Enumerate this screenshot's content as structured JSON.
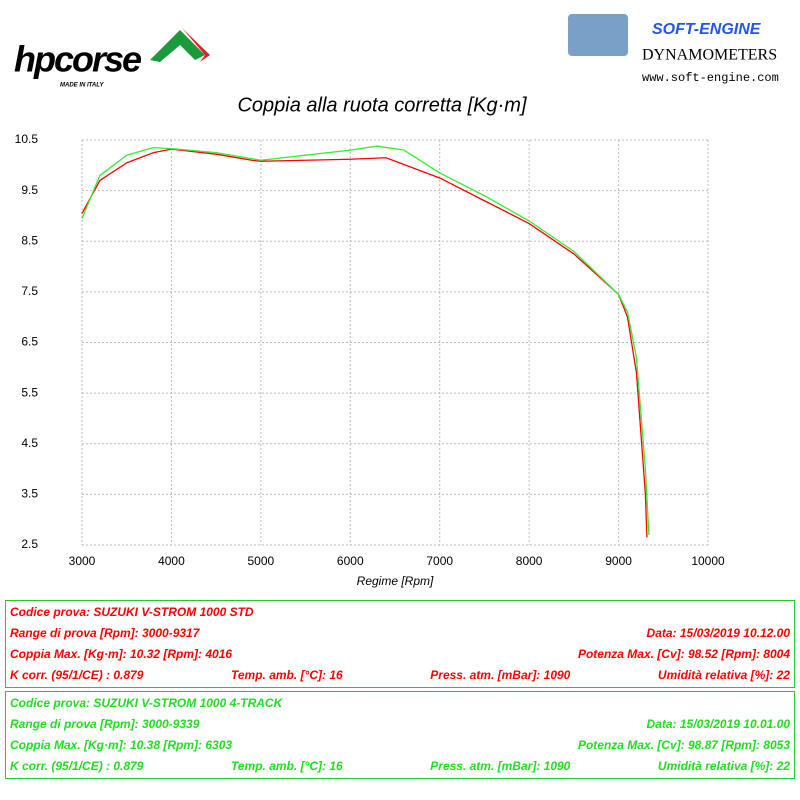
{
  "header": {
    "brand": "hpcorse",
    "brand_tagline": "MADE IN ITALY",
    "dyno_brand": "SOFT-ENGINE",
    "dyno_type": "DYNAMOMETERS",
    "dyno_site": "www.soft-engine.com"
  },
  "chart_data": {
    "type": "line",
    "title": "Coppia alla ruota corretta [Kg·m]",
    "x_label": "Regime [Rpm]",
    "xlim": [
      3000,
      10000
    ],
    "xticks": [
      3000,
      4000,
      5000,
      6000,
      7000,
      8000,
      9000,
      10000
    ],
    "ylim": [
      2.5,
      10.5
    ],
    "yticks": [
      2.5,
      3.5,
      4.5,
      5.5,
      6.5,
      7.5,
      8.5,
      9.5,
      10.5
    ],
    "grid": true,
    "series": [
      {
        "color": "#ff0000",
        "x": [
          3000,
          3200,
          3500,
          3800,
          4000,
          4500,
          4900,
          5000,
          5500,
          6000,
          6400,
          7000,
          7500,
          8000,
          8500,
          9000,
          9100,
          9200,
          9300,
          9317
        ],
        "values": [
          9.05,
          9.7,
          10.05,
          10.25,
          10.32,
          10.22,
          10.1,
          10.08,
          10.1,
          10.12,
          10.15,
          9.75,
          9.3,
          8.85,
          8.25,
          7.45,
          7.0,
          5.9,
          3.5,
          2.65
        ]
      },
      {
        "color": "#33ee33",
        "x": [
          3000,
          3200,
          3500,
          3800,
          4000,
          4500,
          5000,
          5500,
          6000,
          6300,
          6600,
          7000,
          7500,
          8000,
          8500,
          9000,
          9100,
          9200,
          9300,
          9339
        ],
        "values": [
          8.95,
          9.8,
          10.2,
          10.35,
          10.33,
          10.25,
          10.1,
          10.2,
          10.3,
          10.38,
          10.3,
          9.85,
          9.4,
          8.9,
          8.3,
          7.45,
          7.1,
          6.2,
          4.0,
          2.7
        ]
      }
    ]
  },
  "info_boxes": [
    {
      "color": "#ff0000",
      "rows": [
        [
          "Codice prova: SUZUKI V-STROM 1000 STD"
        ],
        [
          "Range di prova [Rpm]: 3000-9317",
          "Data: 15/03/2019  10.12.00"
        ],
        [
          "Coppia Max. [Kg·m]: 10.32  [Rpm]: 4016",
          "Potenza Max. [Cv]: 98.52  [Rpm]: 8004"
        ],
        [
          "K corr. (95/1/CE) : 0.879",
          "Temp. amb. [°C]: 16",
          "Press. atm. [mBar]: 1090",
          "Umidità relativa [%]: 22"
        ]
      ]
    },
    {
      "color": "#22dd22",
      "rows": [
        [
          "Codice prova: SUZUKI V-STROM 1000  4-TRACK"
        ],
        [
          "Range di prova [Rpm]: 3000-9339",
          "Data: 15/03/2019  10.01.00"
        ],
        [
          "Coppia Max. [Kg·m]: 10.38  [Rpm]: 6303",
          "Potenza Max. [Cv]: 98.87  [Rpm]: 8053"
        ],
        [
          "K corr. (95/1/CE) : 0.879",
          "Temp. amb. [°C]: 16",
          "Press. atm. [mBar]: 1090",
          "Umidità relativa [%]: 22"
        ]
      ]
    }
  ]
}
